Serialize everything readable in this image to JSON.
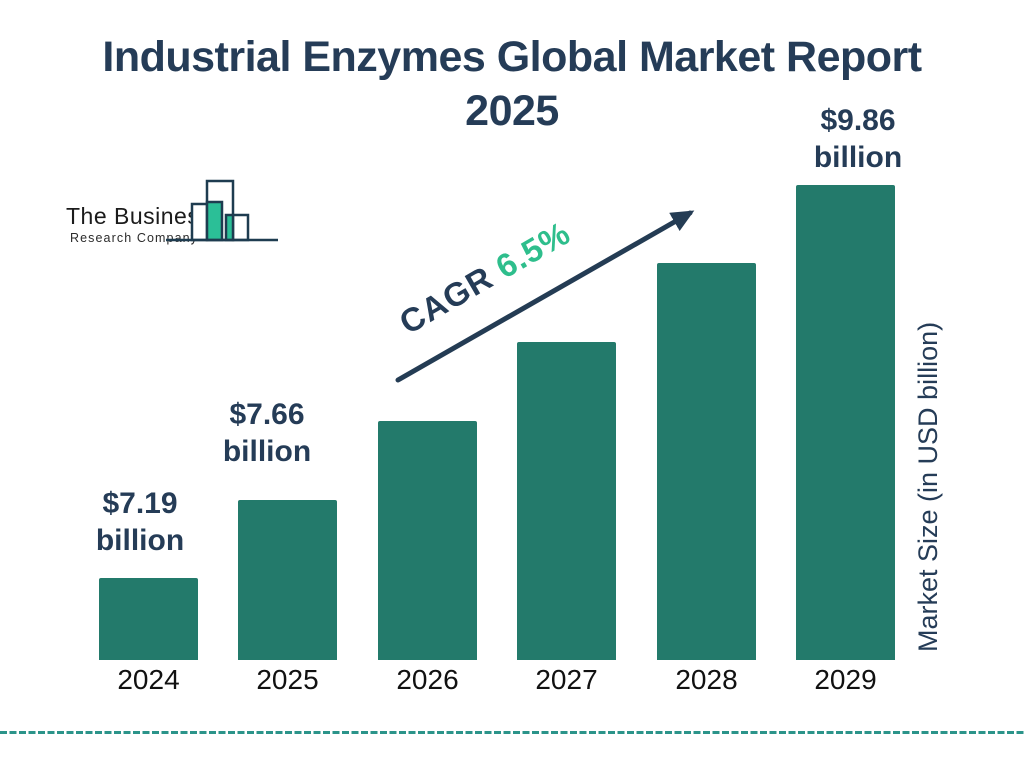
{
  "title": {
    "line1": "Industrial Enzymes Global Market Report",
    "line2": "2025"
  },
  "logo": {
    "line1": "The Business",
    "line2": "Research Company"
  },
  "annotation": {
    "cagr_label": "CAGR",
    "cagr_value": "6.5%"
  },
  "y_axis_label": "Market Size (in USD billion)",
  "colors": {
    "navy": "#253c57",
    "bar_teal": "#237a6b",
    "accent_green": "#2ebe8c",
    "logo_green": "#2bbf97",
    "dashed_teal": "#2b948a",
    "year_label_black": "#111111"
  },
  "chart_data": {
    "type": "bar",
    "title": "Industrial Enzymes Global Market Report 2025",
    "categories": [
      "2024",
      "2025",
      "2026",
      "2027",
      "2028",
      "2029"
    ],
    "values": [
      7.19,
      7.66,
      8.16,
      8.69,
      9.26,
      9.86
    ],
    "estimated_indices": [
      2,
      3,
      4
    ],
    "value_labels": [
      {
        "index": 0,
        "line1": "$7.19",
        "line2": "billion"
      },
      {
        "index": 1,
        "line1": "$7.66",
        "line2": "billion"
      },
      {
        "index": 5,
        "line1": "$9.86",
        "line2": "billion"
      }
    ],
    "cagr": "6.5%",
    "xlabel": "",
    "ylabel": "Market Size (in USD billion)",
    "ylim_note": "y-axis truncated (bars not zero-based)",
    "legend": false,
    "grid": false,
    "bar_color": "#237a6b"
  }
}
